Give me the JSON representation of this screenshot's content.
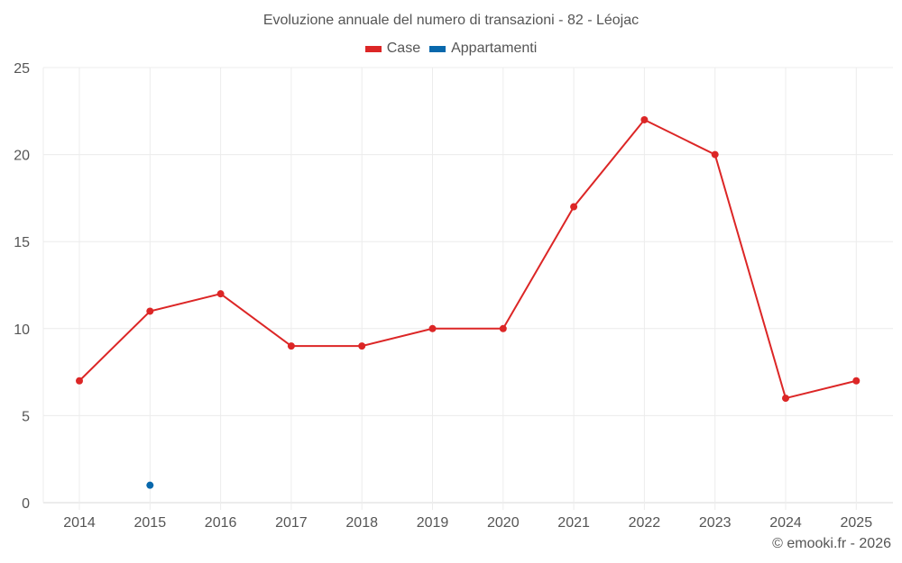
{
  "title": "Evoluzione annuale del numero di transazioni - 82 - Léojac",
  "legend": [
    {
      "label": "Case",
      "color": "#dc2626"
    },
    {
      "label": "Appartamenti",
      "color": "#0868ac"
    }
  ],
  "credit": "© emooki.fr - 2026",
  "chart_data": {
    "type": "line",
    "title": "Evoluzione annuale del numero di transazioni - 82 - Léojac",
    "xlabel": "",
    "ylabel": "",
    "categories": [
      "2014",
      "2015",
      "2016",
      "2017",
      "2018",
      "2019",
      "2020",
      "2021",
      "2022",
      "2023",
      "2024",
      "2025"
    ],
    "series": [
      {
        "name": "Case",
        "color": "#dc2626",
        "values": [
          7,
          11,
          12,
          9,
          9,
          10,
          10,
          17,
          22,
          20,
          6,
          7
        ]
      },
      {
        "name": "Appartamenti",
        "color": "#0868ac",
        "values": [
          null,
          1,
          null,
          null,
          null,
          null,
          null,
          null,
          null,
          null,
          null,
          null
        ]
      }
    ],
    "ylim": [
      0,
      25
    ],
    "yticks": [
      0,
      5,
      10,
      15,
      20,
      25
    ],
    "grid": true,
    "legend_position": "top"
  }
}
